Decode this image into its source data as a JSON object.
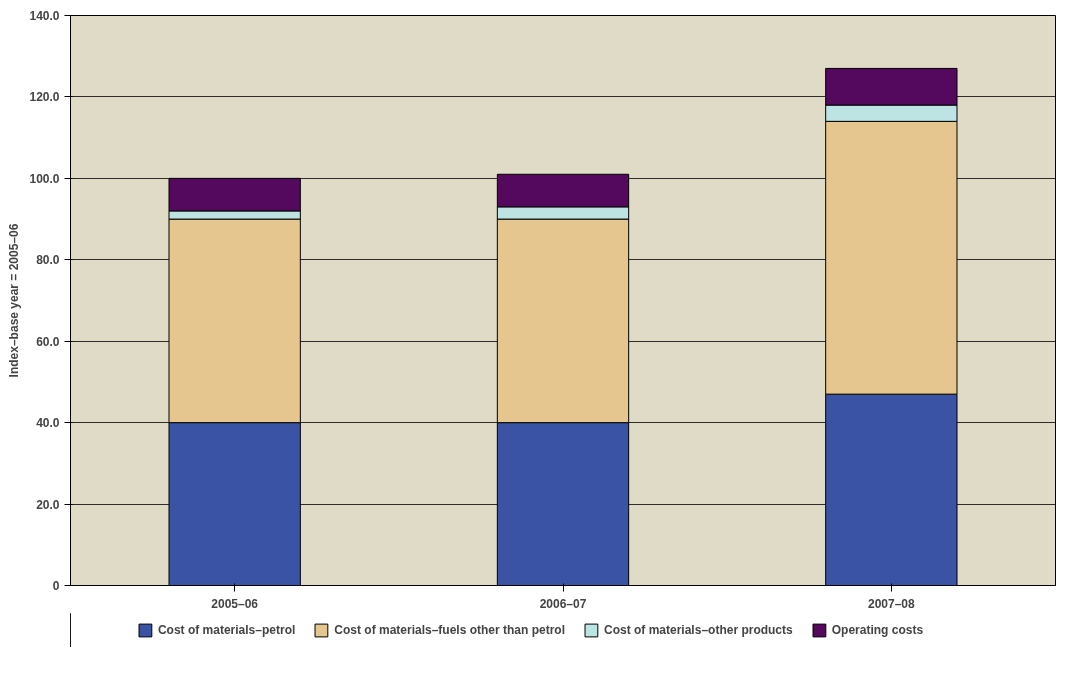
{
  "chart_data": {
    "type": "bar",
    "stacked": true,
    "ylabel": "Index–base year = 2005–06",
    "categories": [
      "2005–06",
      "2006–07",
      "2007–08"
    ],
    "series": [
      {
        "name": "Cost of materials–petrol",
        "color": "#3a53a4",
        "values": [
          40,
          40,
          47
        ]
      },
      {
        "name": "Cost of materials–fuels other than petrol",
        "color": "#e5c68e",
        "values": [
          50,
          50,
          67
        ]
      },
      {
        "name": "Cost of materials–other products",
        "color": "#bde3e3",
        "values": [
          2,
          3,
          4
        ]
      },
      {
        "name": "Operating costs",
        "color": "#55095e",
        "values": [
          8,
          8,
          9
        ]
      }
    ],
    "ylim": [
      0,
      140
    ],
    "yticks": [
      {
        "value": 0,
        "label": "0"
      },
      {
        "value": 20,
        "label": "20.0"
      },
      {
        "value": 40,
        "label": "40.0"
      },
      {
        "value": 60,
        "label": "60.0"
      },
      {
        "value": 80,
        "label": "80.0"
      },
      {
        "value": 100,
        "label": "100.0"
      },
      {
        "value": 120,
        "label": "120.0"
      },
      {
        "value": 140,
        "label": "140.0"
      }
    ],
    "grid": "y",
    "legend": "bottom"
  }
}
